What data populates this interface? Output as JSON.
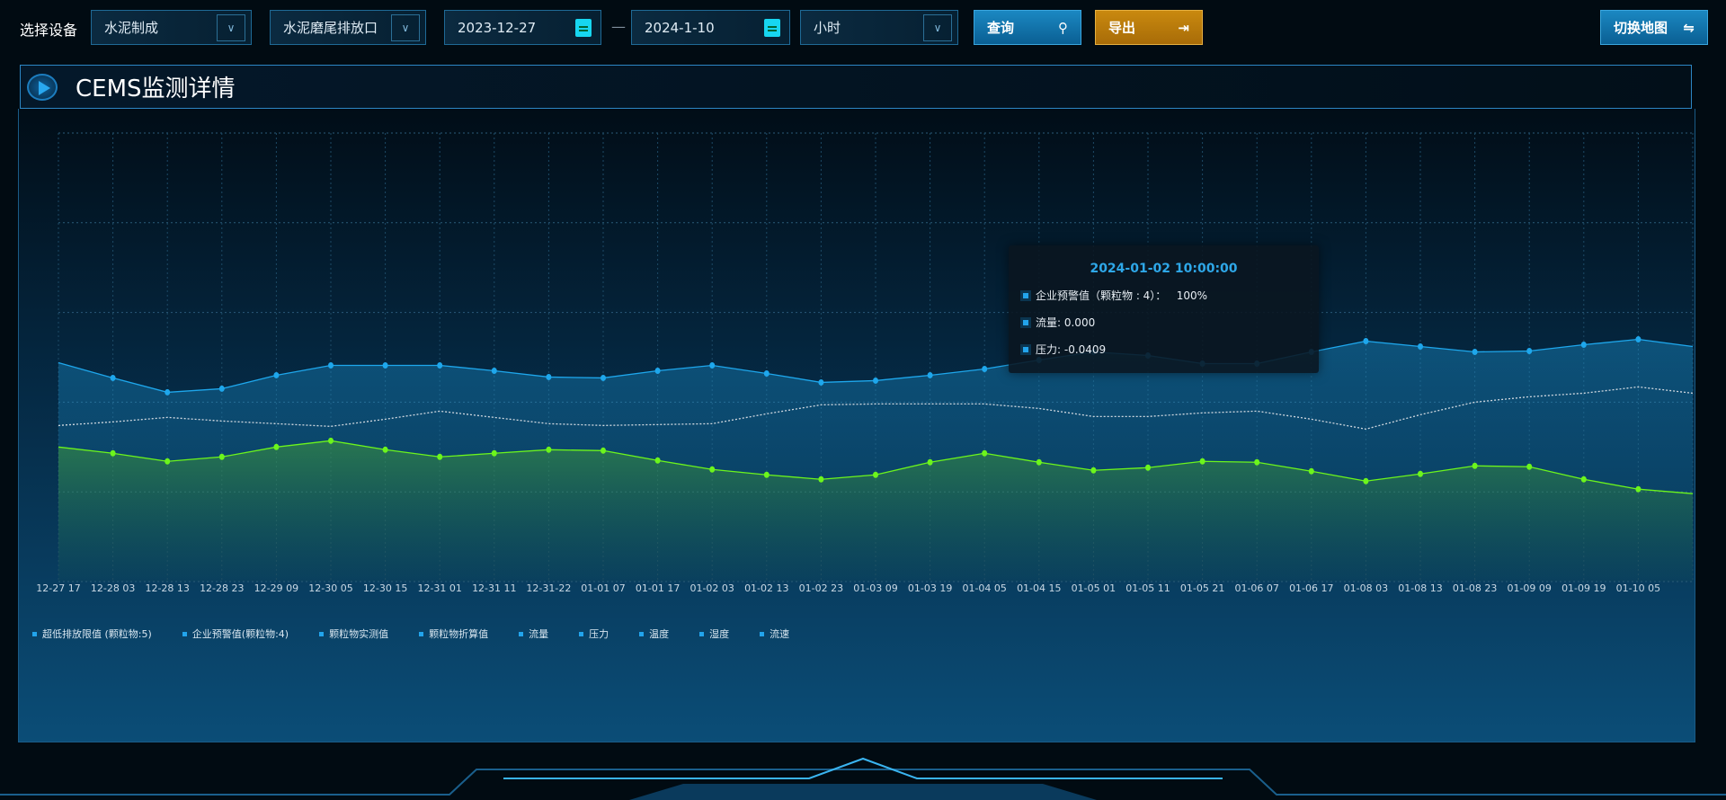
{
  "toolbar": {
    "device_label": "选择设备",
    "device": "水泥制成",
    "outlet": "水泥磨尾排放口",
    "start_date": "2023-12-27",
    "date_sep": "—",
    "end_date": "2024-1-10",
    "granularity": "小时",
    "query": "查询",
    "export": "导出",
    "switch_map": "切换地图"
  },
  "panel": {
    "title": "CEMS监测详情"
  },
  "tooltip": {
    "time": "2024-01-02 10:00:00",
    "rows": [
      "企业预警值（颗粒物 : 4）：   100%",
      "流量: 0.000",
      "压力: -0.0409"
    ]
  },
  "legend": [
    "超低排放限值 (颗粒物:5)",
    "企业预警值(颗粒物:4)",
    "颗粒物实测值",
    "颗粒物折算值",
    "流量",
    "压力",
    "温度",
    "湿度",
    "流速"
  ],
  "chart_data": {
    "type": "line",
    "ylim": [
      0,
      5
    ],
    "grid": true,
    "legend": "bottom-left",
    "categories": [
      "12-27 17",
      "12-28 03",
      "12-28 13",
      "12-28 23",
      "12-29 09",
      "12-30 05",
      "12-30 15",
      "12-31 01",
      "12-31 11",
      "12-31-22",
      "01-01 07",
      "01-01 17",
      "01-02 03",
      "01-02 13",
      "01-02 23",
      "01-03 09",
      "01-03 19",
      "01-04 05",
      "01-04 15",
      "01-05 01",
      "01-05 11",
      "01-05 21",
      "01-06 07",
      "01-06 17",
      "01-08 03",
      "01-08 13",
      "01-08 23",
      "01-09 09",
      "01-09 19",
      "01-10 05",
      ""
    ],
    "series": [
      {
        "color": "#1ea7ec",
        "style": "solid",
        "values": [
          2.44,
          2.27,
          2.11,
          2.15,
          2.3,
          2.41,
          2.41,
          2.41,
          2.35,
          2.28,
          2.27,
          2.35,
          2.41,
          2.32,
          2.22,
          2.24,
          2.3,
          2.37,
          2.47,
          2.56,
          2.52,
          2.43,
          2.43,
          2.56,
          2.68,
          2.62,
          2.56,
          2.57,
          2.64,
          2.7,
          2.62
        ]
      },
      {
        "color": "#d0d8e0",
        "style": "dotted",
        "values": [
          1.74,
          1.78,
          1.83,
          1.79,
          1.76,
          1.73,
          1.81,
          1.9,
          1.83,
          1.76,
          1.74,
          1.75,
          1.76,
          1.87,
          1.97,
          1.98,
          1.98,
          1.98,
          1.93,
          1.84,
          1.84,
          1.88,
          1.9,
          1.81,
          1.7,
          1.86,
          2.0,
          2.06,
          2.1,
          2.17,
          2.1
        ]
      },
      {
        "color": "#6cf51c",
        "style": "solid",
        "values": [
          1.5,
          1.43,
          1.34,
          1.39,
          1.5,
          1.57,
          1.47,
          1.39,
          1.43,
          1.47,
          1.46,
          1.35,
          1.25,
          1.19,
          1.14,
          1.19,
          1.33,
          1.43,
          1.33,
          1.24,
          1.27,
          1.34,
          1.33,
          1.23,
          1.12,
          1.2,
          1.29,
          1.28,
          1.14,
          1.03,
          0.98
        ]
      }
    ]
  }
}
